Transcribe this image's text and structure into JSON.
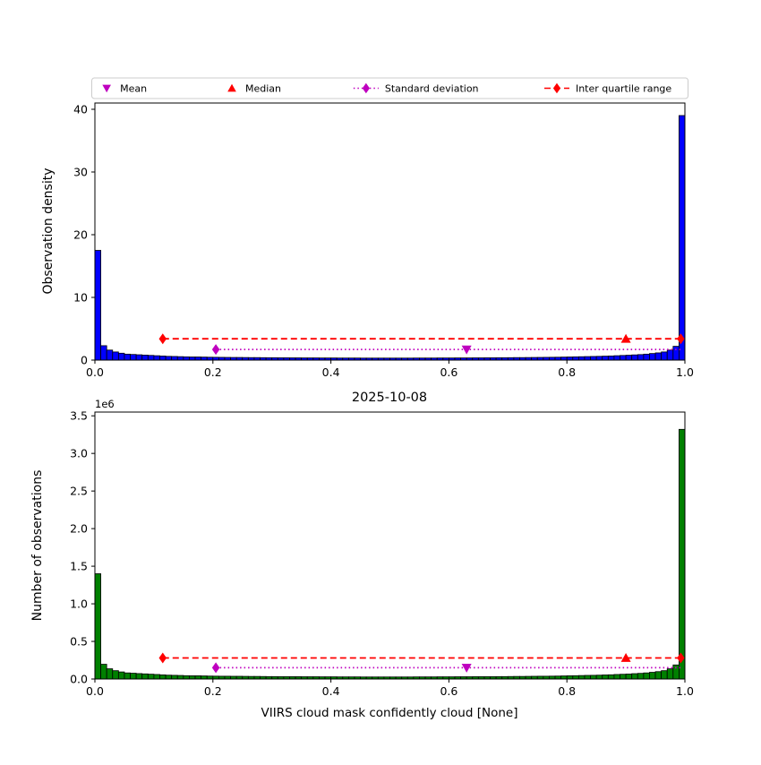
{
  "figure": {
    "title": "2025-10-08",
    "legend": {
      "items": [
        {
          "label": "Mean",
          "marker": "triangle-down",
          "color": "#bf00bf",
          "line": "none"
        },
        {
          "label": "Median",
          "marker": "triangle-up",
          "color": "#ff0000",
          "line": "none"
        },
        {
          "label": "Standard deviation",
          "marker": "diamond",
          "color": "#bf00bf",
          "line": "dotted"
        },
        {
          "label": "Inter quartile range",
          "marker": "diamond",
          "color": "#ff0000",
          "line": "dashed"
        }
      ]
    }
  },
  "chart_data": [
    {
      "type": "bar",
      "title": "",
      "xlabel": "",
      "ylabel": "Observation density",
      "bar_color": "#0000ff",
      "bar_edge_color": "#000000",
      "xlim": [
        0,
        1
      ],
      "ylim": [
        0,
        41
      ],
      "xticks": [
        0.0,
        0.2,
        0.4,
        0.6,
        0.8,
        1.0
      ],
      "xtick_labels": [
        "0.0",
        "0.2",
        "0.4",
        "0.6",
        "0.8",
        "1.0"
      ],
      "yticks": [
        0,
        10,
        20,
        30,
        40
      ],
      "ytick_labels": [
        "0",
        "10",
        "20",
        "30",
        "40"
      ],
      "offset_text": "",
      "bin_start": 0,
      "bin_width": 0.01,
      "values": [
        17.5,
        2.3,
        1.6,
        1.3,
        1.1,
        0.95,
        0.9,
        0.85,
        0.8,
        0.75,
        0.7,
        0.65,
        0.6,
        0.58,
        0.55,
        0.52,
        0.5,
        0.5,
        0.48,
        0.46,
        0.45,
        0.44,
        0.43,
        0.42,
        0.42,
        0.41,
        0.4,
        0.4,
        0.39,
        0.38,
        0.38,
        0.37,
        0.37,
        0.36,
        0.36,
        0.35,
        0.35,
        0.35,
        0.34,
        0.34,
        0.34,
        0.33,
        0.33,
        0.33,
        0.33,
        0.32,
        0.32,
        0.32,
        0.32,
        0.32,
        0.32,
        0.32,
        0.32,
        0.32,
        0.33,
        0.33,
        0.33,
        0.33,
        0.34,
        0.34,
        0.34,
        0.35,
        0.35,
        0.35,
        0.36,
        0.36,
        0.37,
        0.37,
        0.38,
        0.38,
        0.39,
        0.4,
        0.4,
        0.41,
        0.42,
        0.43,
        0.44,
        0.45,
        0.46,
        0.48,
        0.5,
        0.52,
        0.54,
        0.56,
        0.58,
        0.6,
        0.63,
        0.66,
        0.7,
        0.74,
        0.78,
        0.83,
        0.88,
        0.95,
        1.05,
        1.15,
        1.3,
        1.6,
        2.2,
        39.0
      ],
      "stats": {
        "mean": {
          "x": 0.63,
          "y": 1.7,
          "marker": "triangle-down",
          "color": "#bf00bf"
        },
        "median": {
          "x": 0.9,
          "y": 3.4,
          "marker": "triangle-up",
          "color": "#ff0000"
        },
        "std": {
          "x1": 0.205,
          "x2": 0.993,
          "y": 1.7,
          "color": "#bf00bf",
          "dash": "dotted",
          "cap_right": false
        },
        "iqr": {
          "x1": 0.115,
          "x2": 0.993,
          "y": 3.4,
          "color": "#ff0000",
          "dash": "dashed",
          "cap_right": true
        }
      }
    },
    {
      "type": "bar",
      "title": "2025-10-08",
      "xlabel": "VIIRS cloud mask confidently cloud [None]",
      "ylabel": "Number of observations",
      "bar_color": "#008000",
      "bar_edge_color": "#000000",
      "xlim": [
        0,
        1
      ],
      "ylim": [
        0,
        3.55
      ],
      "xticks": [
        0.0,
        0.2,
        0.4,
        0.6,
        0.8,
        1.0
      ],
      "xtick_labels": [
        "0.0",
        "0.2",
        "0.4",
        "0.6",
        "0.8",
        "1.0"
      ],
      "yticks": [
        0.0,
        0.5,
        1.0,
        1.5,
        2.0,
        2.5,
        3.0,
        3.5
      ],
      "ytick_labels": [
        "0.0",
        "0.5",
        "1.0",
        "1.5",
        "2.0",
        "2.5",
        "3.0",
        "3.5"
      ],
      "offset_text": "1e6",
      "bin_start": 0,
      "bin_width": 0.01,
      "values": [
        1.4,
        0.196,
        0.136,
        0.111,
        0.094,
        0.081,
        0.077,
        0.072,
        0.068,
        0.064,
        0.06,
        0.055,
        0.051,
        0.049,
        0.047,
        0.044,
        0.043,
        0.043,
        0.041,
        0.039,
        0.038,
        0.037,
        0.037,
        0.036,
        0.036,
        0.035,
        0.034,
        0.034,
        0.033,
        0.032,
        0.032,
        0.031,
        0.031,
        0.031,
        0.031,
        0.03,
        0.03,
        0.03,
        0.029,
        0.029,
        0.029,
        0.028,
        0.028,
        0.028,
        0.028,
        0.027,
        0.027,
        0.027,
        0.027,
        0.027,
        0.027,
        0.027,
        0.027,
        0.027,
        0.028,
        0.028,
        0.028,
        0.028,
        0.029,
        0.029,
        0.029,
        0.03,
        0.03,
        0.03,
        0.031,
        0.031,
        0.031,
        0.031,
        0.032,
        0.032,
        0.033,
        0.034,
        0.034,
        0.035,
        0.036,
        0.037,
        0.037,
        0.038,
        0.039,
        0.041,
        0.043,
        0.044,
        0.046,
        0.048,
        0.049,
        0.051,
        0.054,
        0.056,
        0.06,
        0.063,
        0.066,
        0.071,
        0.075,
        0.081,
        0.089,
        0.098,
        0.111,
        0.136,
        0.187,
        3.32
      ],
      "stats": {
        "mean": {
          "x": 0.63,
          "y": 0.15,
          "marker": "triangle-down",
          "color": "#bf00bf"
        },
        "median": {
          "x": 0.9,
          "y": 0.28,
          "marker": "triangle-up",
          "color": "#ff0000"
        },
        "std": {
          "x1": 0.205,
          "x2": 0.993,
          "y": 0.15,
          "color": "#bf00bf",
          "dash": "dotted",
          "cap_right": false
        },
        "iqr": {
          "x1": 0.115,
          "x2": 0.993,
          "y": 0.28,
          "color": "#ff0000",
          "dash": "dashed",
          "cap_right": true
        }
      }
    }
  ]
}
